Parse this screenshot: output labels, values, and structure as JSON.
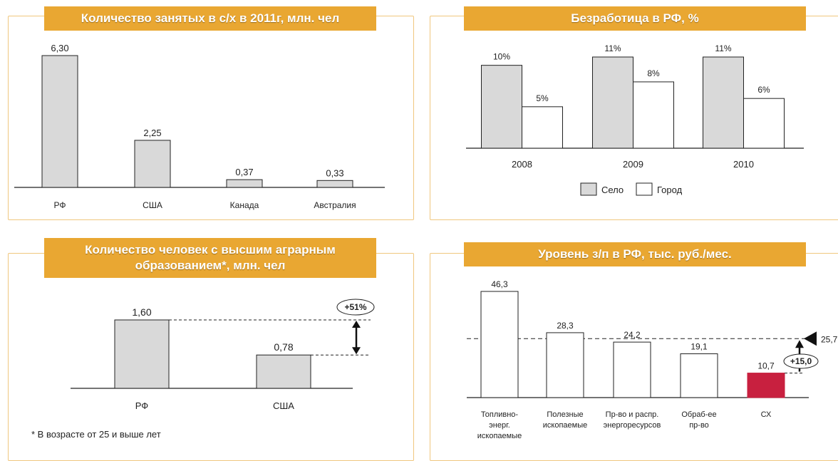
{
  "chart_data": [
    {
      "type": "bar",
      "title": "Количество занятых в с/х в 2011г, млн. чел",
      "categories": [
        "РФ",
        "США",
        "Канада",
        "Австралия"
      ],
      "values": [
        6.3,
        2.25,
        0.37,
        0.33
      ],
      "value_labels": [
        "6,30",
        "2,25",
        "0,37",
        "0,33"
      ],
      "ylim": [
        0,
        6.3
      ],
      "grid": false,
      "colors": {
        "bar": "#d9d9d9",
        "edge": "#222222"
      }
    },
    {
      "type": "bar",
      "title": "Безработица в РФ, %",
      "categories": [
        "2008",
        "2009",
        "2010"
      ],
      "series": [
        {
          "name": "Село",
          "values": [
            10,
            11,
            11
          ],
          "value_labels": [
            "10%",
            "11%",
            "11%"
          ],
          "color": "#d9d9d9"
        },
        {
          "name": "Город",
          "values": [
            5,
            8,
            6
          ],
          "value_labels": [
            "5%",
            "8%",
            "6%"
          ],
          "color": "#ffffff"
        }
      ],
      "ylim": [
        0,
        11
      ],
      "legend": "bottom",
      "grid": false
    },
    {
      "type": "bar",
      "title": "Количество человек с высшим аграрным образованием*, млн. чел",
      "categories": [
        "РФ",
        "США"
      ],
      "values": [
        1.6,
        0.78
      ],
      "value_labels": [
        "1,60",
        "0,78"
      ],
      "ylim": [
        0,
        1.6
      ],
      "annotation": "+51%",
      "footnote": "* В возрасте  от 25 и выше лет",
      "grid": false,
      "colors": {
        "bar": "#d9d9d9",
        "edge": "#222222"
      }
    },
    {
      "type": "bar",
      "title": "Уровень з/п в РФ, тыс. руб./мес.",
      "categories": [
        "Топливно-энерг. ископаемые",
        "Полезные ископаемые",
        "Пр-во и распр. энергоресурсов",
        "Обраб-ее пр-во",
        "СХ"
      ],
      "category_lines": [
        [
          "Топливно-",
          "энерг.",
          "ископаемые"
        ],
        [
          "Полезные",
          "ископаемые"
        ],
        [
          "Пр-во и распр.",
          "энергоресурсов"
        ],
        [
          "Обраб-ее",
          "пр-во"
        ],
        [
          "СХ"
        ]
      ],
      "values": [
        46.3,
        28.3,
        24.2,
        19.1,
        10.7
      ],
      "value_labels": [
        "46,3",
        "28,3",
        "24,2",
        "19,1",
        "10,7"
      ],
      "ylim": [
        0,
        46.3
      ],
      "reference_line": {
        "value": 25.7,
        "label": "25,7"
      },
      "annotation": "+15,0",
      "grid": false,
      "colors": {
        "bar": "#ffffff",
        "highlight": "#c8203f",
        "edge": "#222222"
      }
    }
  ]
}
